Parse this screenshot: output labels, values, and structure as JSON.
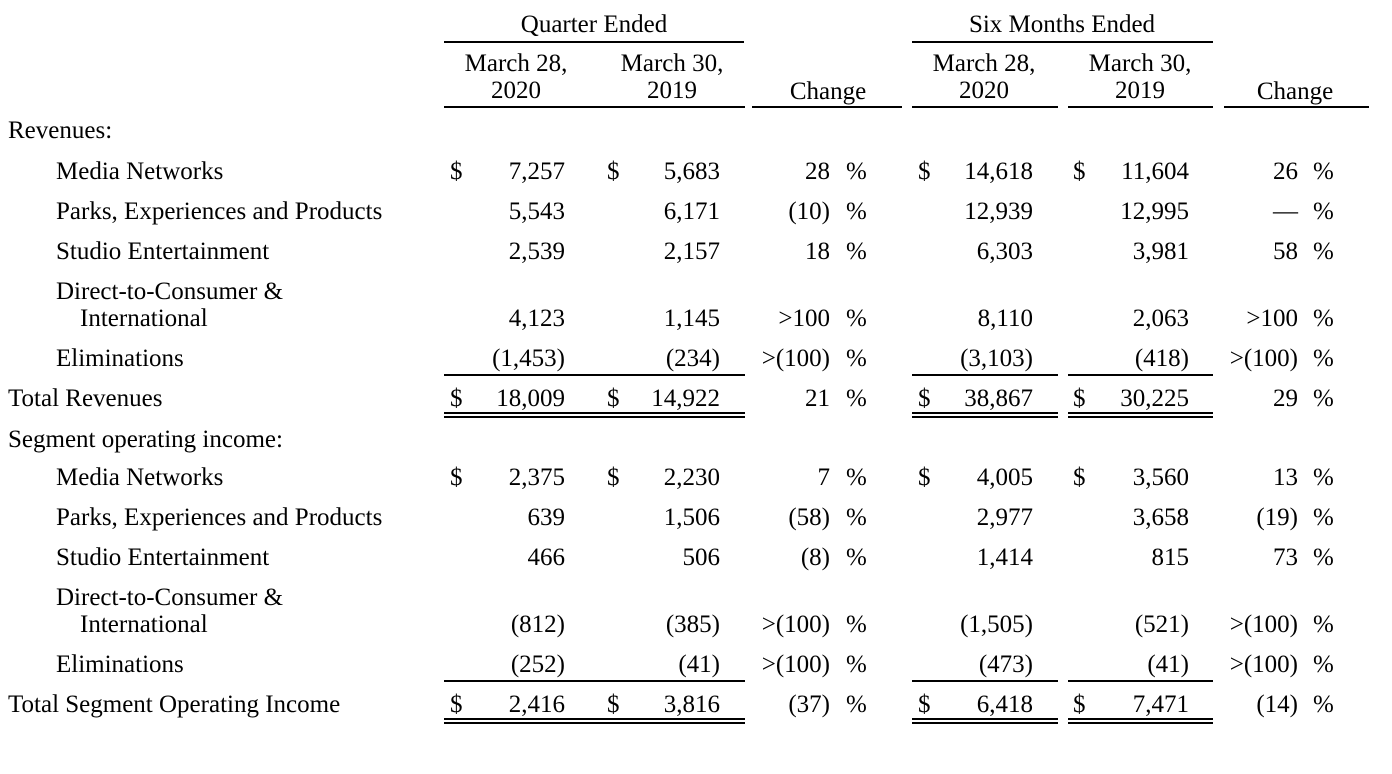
{
  "header": {
    "quarter_ended": "Quarter Ended",
    "six_months_ended": "Six Months Ended",
    "col_q_2020": [
      "March 28,",
      "2020"
    ],
    "col_q_2019": [
      "March 30,",
      "2019"
    ],
    "change": "Change",
    "col_s_2020": [
      "March 28,",
      "2020"
    ],
    "col_s_2019": [
      "March 30,",
      "2019"
    ]
  },
  "revenues": {
    "section_label": "Revenues:",
    "rows": [
      {
        "label": [
          "Media Networks"
        ],
        "dollar": true,
        "q2020": "7,257",
        "q2019": "5,683",
        "qchg": "28",
        "s2020": "14,618",
        "s2019": "11,604",
        "schg": "26"
      },
      {
        "label": [
          "Parks, Experiences and Products"
        ],
        "dollar": false,
        "q2020": "5,543",
        "q2019": "6,171",
        "qchg": "(10)",
        "s2020": "12,939",
        "s2019": "12,995",
        "schg": "—"
      },
      {
        "label": [
          "Studio Entertainment"
        ],
        "dollar": false,
        "q2020": "2,539",
        "q2019": "2,157",
        "qchg": "18",
        "s2020": "6,303",
        "s2019": "3,981",
        "schg": "58"
      },
      {
        "label": [
          "Direct-to-Consumer &",
          "International"
        ],
        "dollar": false,
        "q2020": "4,123",
        "q2019": "1,145",
        "qchg": ">100",
        "s2020": "8,110",
        "s2019": "2,063",
        "schg": ">100"
      },
      {
        "label": [
          "Eliminations"
        ],
        "dollar": false,
        "q2020": "(1,453)",
        "q2019": "(234)",
        "qchg": ">(100)",
        "s2020": "(3,103)",
        "s2019": "(418)",
        "schg": ">(100)"
      }
    ],
    "total": {
      "label": "Total Revenues",
      "q2020": "18,009",
      "q2019": "14,922",
      "qchg": "21",
      "s2020": "38,867",
      "s2019": "30,225",
      "schg": "29"
    }
  },
  "segment": {
    "section_label": "Segment operating income:",
    "rows": [
      {
        "label": [
          "Media Networks"
        ],
        "dollar": true,
        "q2020": "2,375",
        "q2019": "2,230",
        "qchg": "7",
        "s2020": "4,005",
        "s2019": "3,560",
        "schg": "13"
      },
      {
        "label": [
          "Parks, Experiences and Products"
        ],
        "dollar": false,
        "q2020": "639",
        "q2019": "1,506",
        "qchg": "(58)",
        "s2020": "2,977",
        "s2019": "3,658",
        "schg": "(19)"
      },
      {
        "label": [
          "Studio Entertainment"
        ],
        "dollar": false,
        "q2020": "466",
        "q2019": "506",
        "qchg": "(8)",
        "s2020": "1,414",
        "s2019": "815",
        "schg": "73"
      },
      {
        "label": [
          "Direct-to-Consumer &",
          "International"
        ],
        "dollar": false,
        "q2020": "(812)",
        "q2019": "(385)",
        "qchg": ">(100)",
        "s2020": "(1,505)",
        "s2019": "(521)",
        "schg": ">(100)"
      },
      {
        "label": [
          "Eliminations"
        ],
        "dollar": false,
        "q2020": "(252)",
        "q2019": "(41)",
        "qchg": ">(100)",
        "s2020": "(473)",
        "s2019": "(41)",
        "schg": ">(100)"
      }
    ],
    "total": {
      "label": "Total Segment Operating Income",
      "q2020": "2,416",
      "q2019": "3,816",
      "qchg": "(37)",
      "s2020": "6,418",
      "s2019": "7,471",
      "schg": "(14)"
    }
  },
  "symbols": {
    "dollar": "$",
    "percent": "%"
  }
}
